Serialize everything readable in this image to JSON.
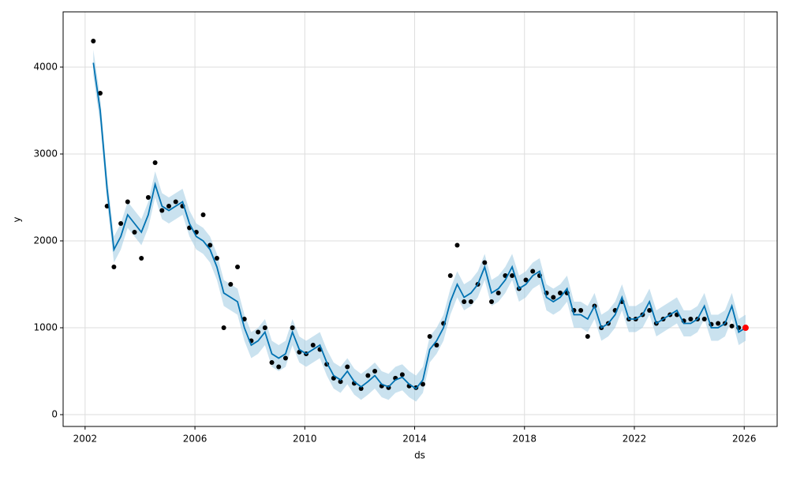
{
  "chart_data": {
    "type": "forecast",
    "xlabel": "ds",
    "ylabel": "y",
    "xlim": [
      2001.2,
      2027.2
    ],
    "xticks": [
      2002,
      2006,
      2010,
      2014,
      2018,
      2022,
      2026
    ],
    "ylim": [
      -136,
      4636
    ],
    "yticks": [
      0,
      1000,
      2000,
      3000,
      4000
    ],
    "grid": true,
    "x": [
      2002.3,
      2002.55,
      2002.8,
      2003.05,
      2003.3,
      2003.55,
      2003.8,
      2004.05,
      2004.3,
      2004.55,
      2004.8,
      2005.05,
      2005.3,
      2005.55,
      2005.8,
      2006.05,
      2006.3,
      2006.55,
      2006.8,
      2007.05,
      2007.3,
      2007.55,
      2007.8,
      2008.05,
      2008.3,
      2008.55,
      2008.8,
      2009.05,
      2009.3,
      2009.55,
      2009.8,
      2010.05,
      2010.3,
      2010.55,
      2010.8,
      2011.05,
      2011.3,
      2011.55,
      2011.8,
      2012.05,
      2012.3,
      2012.55,
      2012.8,
      2013.05,
      2013.3,
      2013.55,
      2013.8,
      2014.05,
      2014.3,
      2014.55,
      2014.8,
      2015.05,
      2015.3,
      2015.55,
      2015.8,
      2016.05,
      2016.3,
      2016.55,
      2016.8,
      2017.05,
      2017.3,
      2017.55,
      2017.8,
      2018.05,
      2018.3,
      2018.55,
      2018.8,
      2019.05,
      2019.3,
      2019.55,
      2019.8,
      2020.05,
      2020.3,
      2020.55,
      2020.8,
      2021.05,
      2021.3,
      2021.55,
      2021.8,
      2022.05,
      2022.3,
      2022.55,
      2022.8,
      2023.05,
      2023.3,
      2023.55,
      2023.8,
      2024.05,
      2024.3,
      2024.55,
      2024.8,
      2025.05,
      2025.3,
      2025.55,
      2025.8,
      2026.05
    ],
    "observed": {
      "color": "#000000",
      "values": [
        4300,
        3700,
        2400,
        1700,
        2200,
        2450,
        2100,
        1800,
        2500,
        2900,
        2350,
        2400,
        2450,
        2400,
        2150,
        2100,
        2300,
        1950,
        1800,
        1000,
        1500,
        1700,
        1100,
        850,
        950,
        1000,
        600,
        550,
        650,
        1000,
        720,
        700,
        800,
        750,
        580,
        420,
        380,
        550,
        360,
        300,
        450,
        500,
        330,
        310,
        420,
        460,
        330,
        310,
        350,
        900,
        800,
        1050,
        1600,
        1950,
        1300,
        1300,
        1500,
        1750,
        1300,
        1400,
        1600,
        1600,
        1450,
        1550,
        1650,
        1600,
        1400,
        1350,
        1400,
        1400,
        1200,
        1200,
        900,
        1250,
        1000,
        1050,
        1200,
        1300,
        1100,
        1100,
        1150,
        1200,
        1050,
        1100,
        1150,
        1150,
        1080,
        1100,
        1100,
        1100,
        1040,
        1050,
        1050,
        1020,
        1000,
        null
      ]
    },
    "forecast": {
      "color": "#0072B2",
      "values": [
        4050,
        3500,
        2600,
        1900,
        2050,
        2300,
        2200,
        2100,
        2300,
        2650,
        2400,
        2350,
        2400,
        2450,
        2200,
        2050,
        2000,
        1900,
        1700,
        1400,
        1350,
        1300,
        1000,
        800,
        850,
        950,
        700,
        650,
        700,
        950,
        750,
        700,
        750,
        800,
        600,
        450,
        400,
        500,
        380,
        320,
        380,
        450,
        350,
        320,
        400,
        430,
        350,
        300,
        400,
        750,
        850,
        1000,
        1300,
        1500,
        1350,
        1400,
        1500,
        1700,
        1400,
        1450,
        1550,
        1700,
        1450,
        1500,
        1600,
        1650,
        1350,
        1300,
        1350,
        1450,
        1150,
        1150,
        1100,
        1250,
        1000,
        1050,
        1150,
        1350,
        1100,
        1100,
        1150,
        1300,
        1050,
        1100,
        1150,
        1200,
        1050,
        1050,
        1100,
        1250,
        1000,
        1000,
        1050,
        1250,
        950,
        1000
      ]
    },
    "band": {
      "color": "#9ecae1",
      "lower": [
        3900,
        3350,
        2450,
        1750,
        1900,
        2150,
        2050,
        1950,
        2150,
        2500,
        2250,
        2200,
        2250,
        2300,
        2050,
        1900,
        1850,
        1750,
        1550,
        1250,
        1200,
        1150,
        850,
        650,
        700,
        800,
        550,
        500,
        550,
        800,
        600,
        550,
        600,
        650,
        450,
        300,
        250,
        350,
        230,
        170,
        230,
        300,
        200,
        170,
        250,
        280,
        200,
        150,
        250,
        600,
        700,
        850,
        1150,
        1350,
        1200,
        1250,
        1350,
        1550,
        1250,
        1300,
        1400,
        1550,
        1300,
        1350,
        1450,
        1500,
        1200,
        1150,
        1200,
        1300,
        1000,
        1000,
        950,
        1100,
        850,
        900,
        1000,
        1200,
        950,
        950,
        1000,
        1150,
        900,
        950,
        1000,
        1050,
        900,
        900,
        950,
        1100,
        850,
        850,
        900,
        1100,
        800,
        850
      ],
      "upper": [
        4200,
        3650,
        2750,
        2050,
        2200,
        2450,
        2350,
        2250,
        2450,
        2800,
        2550,
        2500,
        2550,
        2600,
        2350,
        2200,
        2150,
        2050,
        1850,
        1550,
        1500,
        1450,
        1150,
        950,
        1000,
        1100,
        850,
        800,
        850,
        1100,
        900,
        850,
        900,
        950,
        750,
        600,
        550,
        650,
        530,
        470,
        530,
        600,
        500,
        470,
        550,
        580,
        500,
        450,
        550,
        900,
        1000,
        1150,
        1450,
        1650,
        1500,
        1550,
        1650,
        1850,
        1550,
        1600,
        1700,
        1850,
        1600,
        1650,
        1750,
        1800,
        1500,
        1450,
        1500,
        1600,
        1300,
        1300,
        1250,
        1400,
        1150,
        1200,
        1300,
        1500,
        1250,
        1250,
        1300,
        1450,
        1200,
        1250,
        1300,
        1350,
        1200,
        1200,
        1250,
        1400,
        1150,
        1150,
        1200,
        1400,
        1100,
        1150
      ]
    },
    "highlight": {
      "x": 2026.05,
      "y": 1000,
      "color": "#ff0000"
    }
  }
}
